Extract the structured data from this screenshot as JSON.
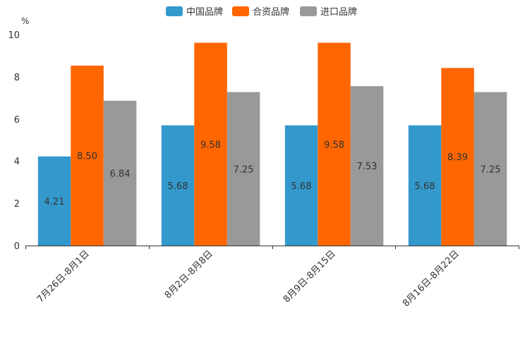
{
  "chart_data": {
    "type": "bar",
    "unit_label": "%",
    "categories": [
      "7月26日-8月1日",
      "8月2日-8月8日",
      "8月9日-8月15日",
      "8月16日-8月22日"
    ],
    "series": [
      {
        "name": "中国品牌",
        "color": "#3399cc",
        "values": [
          4.21,
          5.68,
          5.68,
          5.68
        ],
        "labels": [
          "4.21",
          "5.68",
          "5.68",
          "5.68"
        ]
      },
      {
        "name": "合资品牌",
        "color": "#ff6600",
        "values": [
          8.5,
          9.58,
          9.58,
          8.39
        ],
        "labels": [
          "8.50",
          "9.58",
          "9.58",
          "8.39"
        ]
      },
      {
        "name": "进口品牌",
        "color": "#999999",
        "values": [
          6.84,
          7.25,
          7.53,
          7.25
        ],
        "labels": [
          "6.84",
          "7.25",
          "7.53",
          "7.25"
        ]
      }
    ],
    "y_ticks": [
      "0",
      "2",
      "4",
      "6",
      "8",
      "10"
    ],
    "ylim": [
      0,
      10
    ],
    "legend_position": "top-center"
  }
}
